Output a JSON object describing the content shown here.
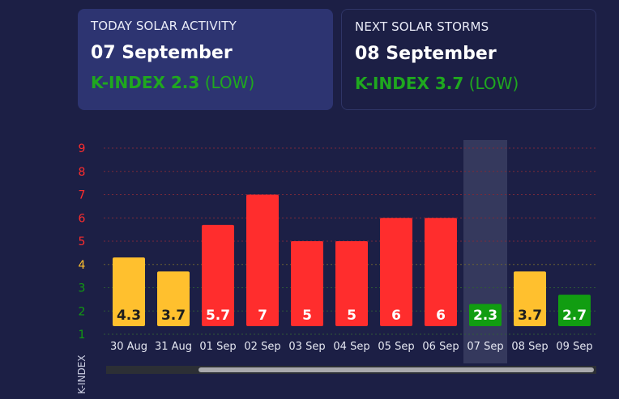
{
  "today": {
    "label": "TODAY SOLAR ACTIVITY",
    "date": "07 September",
    "kindex": "K-INDEX 2.3",
    "level": "(LOW)"
  },
  "next": {
    "label": "NEXT SOLAR STORMS",
    "date": "08 September",
    "kindex": "K-INDEX 3.7",
    "level": "(LOW)"
  },
  "colors": {
    "background": "#1c1f45",
    "red": "#ff2d2d",
    "yellow": "#ffc02e",
    "green": "#119d11",
    "highlight": "#3a3e62"
  },
  "chart_data": {
    "type": "bar",
    "ylabel": "K-INDEX",
    "ylim": [
      1,
      9
    ],
    "yticks": [
      1,
      2,
      3,
      4,
      5,
      6,
      7,
      8,
      9
    ],
    "highlight_category": "07 Sep",
    "categories": [
      "30 Aug",
      "31 Aug",
      "01 Sep",
      "02 Sep",
      "03 Sep",
      "04 Sep",
      "05 Sep",
      "06 Sep",
      "07 Sep",
      "08 Sep",
      "09 Sep"
    ],
    "series": [
      {
        "values": [
          4.3,
          3.7,
          5.7,
          7,
          5,
          5,
          6,
          6,
          2.3,
          3.7,
          2.7
        ],
        "labels": [
          "4.3",
          "3.7",
          "5.7",
          "7",
          "5",
          "5",
          "6",
          "6",
          "2.3",
          "3.7",
          "2.7"
        ],
        "levels": [
          "yellow",
          "yellow",
          "red",
          "red",
          "red",
          "red",
          "red",
          "red",
          "green",
          "yellow",
          "green"
        ]
      }
    ]
  }
}
